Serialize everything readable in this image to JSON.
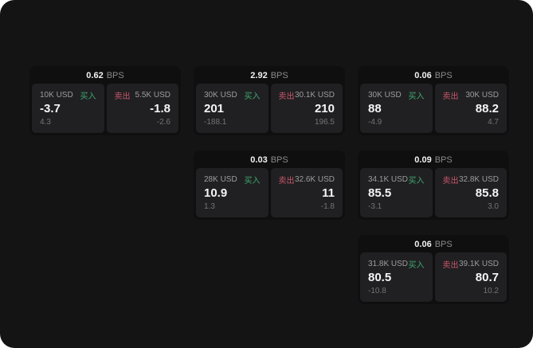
{
  "colors": {
    "background": "#141414",
    "card_base": "#0f0f0f",
    "panel": "#202022",
    "buy_green": "#3fa870",
    "sell_red": "#c9566a"
  },
  "cards": [
    {
      "row": 1,
      "col": 1,
      "bps": "0.62",
      "unit": "BPS",
      "buy": {
        "size": "10K USD",
        "side_label": "买入",
        "price": "-3.7",
        "delta": "4.3"
      },
      "sell": {
        "size": "5.5K USD",
        "side_label": "卖出",
        "price": "-1.8",
        "delta": "-2.6"
      }
    },
    {
      "row": 1,
      "col": 2,
      "bps": "2.92",
      "unit": "BPS",
      "buy": {
        "size": "30K USD",
        "side_label": "买入",
        "price": "201",
        "delta": "-188.1"
      },
      "sell": {
        "size": "30.1K USD",
        "side_label": "卖出",
        "price": "210",
        "delta": "196.5"
      }
    },
    {
      "row": 1,
      "col": 3,
      "bps": "0.06",
      "unit": "BPS",
      "buy": {
        "size": "30K USD",
        "side_label": "买入",
        "price": "88",
        "delta": "-4.9"
      },
      "sell": {
        "size": "30K USD",
        "side_label": "卖出",
        "price": "88.2",
        "delta": "4.7"
      }
    },
    {
      "row": 2,
      "col": 2,
      "bps": "0.03",
      "unit": "BPS",
      "buy": {
        "size": "28K USD",
        "side_label": "买入",
        "price": "10.9",
        "delta": "1.3"
      },
      "sell": {
        "size": "32.6K USD",
        "side_label": "卖出",
        "price": "11",
        "delta": "-1.8"
      }
    },
    {
      "row": 2,
      "col": 3,
      "bps": "0.09",
      "unit": "BPS",
      "buy": {
        "size": "34.1K USD",
        "side_label": "买入",
        "price": "85.5",
        "delta": "-3.1"
      },
      "sell": {
        "size": "32.8K USD",
        "side_label": "卖出",
        "price": "85.8",
        "delta": "3.0"
      }
    },
    {
      "row": 3,
      "col": 3,
      "bps": "0.06",
      "unit": "BPS",
      "buy": {
        "size": "31.8K USD",
        "side_label": "买入",
        "price": "80.5",
        "delta": "-10.8"
      },
      "sell": {
        "size": "39.1K USD",
        "side_label": "卖出",
        "price": "80.7",
        "delta": "10.2"
      }
    }
  ]
}
